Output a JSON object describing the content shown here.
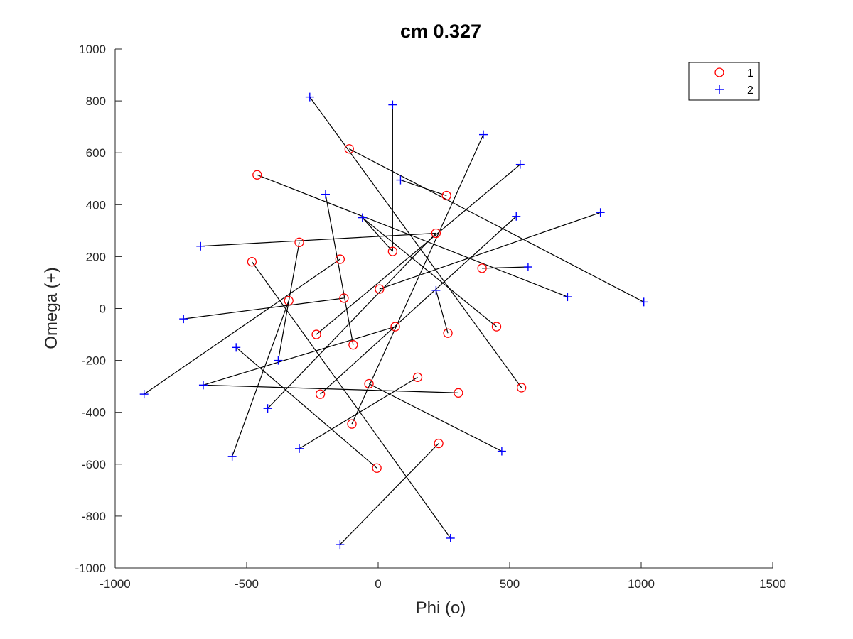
{
  "chart_data": {
    "type": "scatter",
    "title": "cm 0.327",
    "xlabel": "Phi (o)",
    "ylabel": "Omega (+)",
    "xlim": [
      -1000,
      1500
    ],
    "ylim": [
      -1000,
      1000
    ],
    "xticks": [
      -1000,
      -500,
      0,
      500,
      1000,
      1500
    ],
    "yticks": [
      -1000,
      -800,
      -600,
      -400,
      -200,
      0,
      200,
      400,
      600,
      800,
      1000
    ],
    "grid": false,
    "legend": {
      "position": "top-right",
      "entries": [
        {
          "label": "1",
          "marker": "circle",
          "color": "#ff0000"
        },
        {
          "label": "2",
          "marker": "plus",
          "color": "#0000ff"
        }
      ]
    },
    "series": [
      {
        "name": "1",
        "marker": "circle",
        "color": "#ff0000",
        "points": [
          [
            -110,
            615
          ],
          [
            -460,
            515
          ],
          [
            260,
            435
          ],
          [
            220,
            290
          ],
          [
            -300,
            255
          ],
          [
            55,
            220
          ],
          [
            -480,
            180
          ],
          [
            -145,
            190
          ],
          [
            395,
            155
          ],
          [
            5,
            75
          ],
          [
            -340,
            30
          ],
          [
            -130,
            40
          ],
          [
            450,
            -70
          ],
          [
            65,
            -70
          ],
          [
            265,
            -95
          ],
          [
            -235,
            -100
          ],
          [
            -95,
            -140
          ],
          [
            545,
            -305
          ],
          [
            150,
            -265
          ],
          [
            -220,
            -330
          ],
          [
            -35,
            -290
          ],
          [
            305,
            -325
          ],
          [
            -100,
            -445
          ],
          [
            -5,
            -615
          ],
          [
            230,
            -520
          ]
        ]
      },
      {
        "name": "2",
        "marker": "plus",
        "color": "#0000ff",
        "points": [
          [
            -260,
            815
          ],
          [
            55,
            785
          ],
          [
            400,
            670
          ],
          [
            540,
            555
          ],
          [
            85,
            495
          ],
          [
            -200,
            440
          ],
          [
            -60,
            350
          ],
          [
            525,
            355
          ],
          [
            845,
            370
          ],
          [
            -675,
            240
          ],
          [
            570,
            160
          ],
          [
            720,
            45
          ],
          [
            1010,
            25
          ],
          [
            220,
            70
          ],
          [
            -740,
            -40
          ],
          [
            -540,
            -150
          ],
          [
            -380,
            -200
          ],
          [
            -890,
            -330
          ],
          [
            -665,
            -295
          ],
          [
            -420,
            -385
          ],
          [
            -300,
            -540
          ],
          [
            470,
            -550
          ],
          [
            -555,
            -570
          ],
          [
            275,
            -885
          ],
          [
            -145,
            -910
          ]
        ]
      }
    ],
    "links": [
      [
        [
          -110,
          615
        ],
        [
          1010,
          25
        ]
      ],
      [
        [
          -460,
          515
        ],
        [
          720,
          45
        ]
      ],
      [
        [
          260,
          435
        ],
        [
          85,
          495
        ]
      ],
      [
        [
          220,
          290
        ],
        [
          -675,
          240
        ]
      ],
      [
        [
          220,
          290
        ],
        [
          -420,
          -385
        ]
      ],
      [
        [
          -300,
          255
        ],
        [
          -380,
          -200
        ]
      ],
      [
        [
          55,
          220
        ],
        [
          55,
          785
        ]
      ],
      [
        [
          55,
          220
        ],
        [
          -60,
          350
        ]
      ],
      [
        [
          -480,
          180
        ],
        [
          275,
          -885
        ]
      ],
      [
        [
          -145,
          190
        ],
        [
          -890,
          -330
        ]
      ],
      [
        [
          395,
          155
        ],
        [
          570,
          160
        ]
      ],
      [
        [
          5,
          75
        ],
        [
          845,
          370
        ]
      ],
      [
        [
          -340,
          30
        ],
        [
          -555,
          -570
        ]
      ],
      [
        [
          -130,
          40
        ],
        [
          -740,
          -40
        ]
      ],
      [
        [
          450,
          -70
        ],
        [
          -60,
          350
        ]
      ],
      [
        [
          65,
          -70
        ],
        [
          -665,
          -295
        ]
      ],
      [
        [
          -100,
          -445
        ],
        [
          400,
          670
        ]
      ],
      [
        [
          265,
          -95
        ],
        [
          220,
          70
        ]
      ],
      [
        [
          -235,
          -100
        ],
        [
          540,
          555
        ]
      ],
      [
        [
          -95,
          -140
        ],
        [
          -200,
          440
        ]
      ],
      [
        [
          545,
          -305
        ],
        [
          -260,
          815
        ]
      ],
      [
        [
          150,
          -265
        ],
        [
          -300,
          -540
        ]
      ],
      [
        [
          -220,
          -330
        ],
        [
          525,
          355
        ]
      ],
      [
        [
          -35,
          -290
        ],
        [
          470,
          -550
        ]
      ],
      [
        [
          305,
          -325
        ],
        [
          -665,
          -295
        ]
      ],
      [
        [
          -5,
          -615
        ],
        [
          -540,
          -150
        ]
      ],
      [
        [
          230,
          -520
        ],
        [
          -145,
          -910
        ]
      ]
    ]
  }
}
